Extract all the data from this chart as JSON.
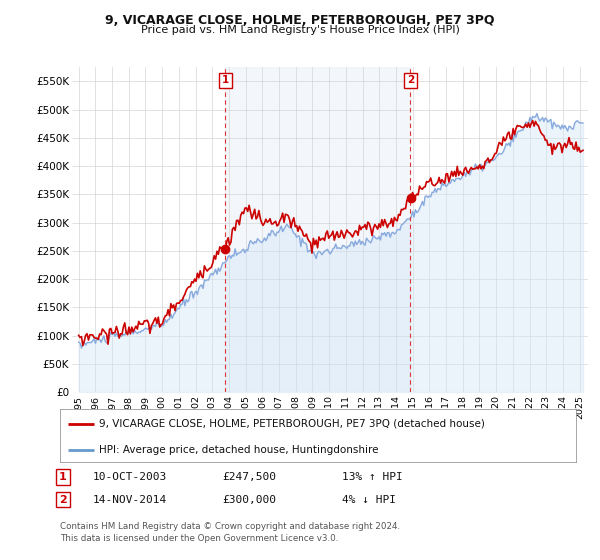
{
  "title": "9, VICARAGE CLOSE, HOLME, PETERBOROUGH, PE7 3PQ",
  "subtitle": "Price paid vs. HM Land Registry's House Price Index (HPI)",
  "ylim": [
    0,
    575000
  ],
  "yticks": [
    0,
    50000,
    100000,
    150000,
    200000,
    250000,
    300000,
    350000,
    400000,
    450000,
    500000,
    550000
  ],
  "ytick_labels": [
    "£0",
    "£50K",
    "£100K",
    "£150K",
    "£200K",
    "£250K",
    "£300K",
    "£350K",
    "£400K",
    "£450K",
    "£500K",
    "£550K"
  ],
  "bg_color": "#ffffff",
  "grid_color": "#cccccc",
  "sale1_date": 2003.78,
  "sale1_price": 247500,
  "sale2_date": 2014.87,
  "sale2_price": 300000,
  "legend_line1": "9, VICARAGE CLOSE, HOLME, PETERBOROUGH, PE7 3PQ (detached house)",
  "legend_line2": "HPI: Average price, detached house, Huntingdonshire",
  "legend_line1_color": "#cc0000",
  "legend_line2_color": "#6699cc",
  "annotation1": [
    "1",
    "10-OCT-2003",
    "£247,500",
    "13% ↑ HPI"
  ],
  "annotation2": [
    "2",
    "14-NOV-2014",
    "£300,000",
    "4% ↓ HPI"
  ],
  "footer": "Contains HM Land Registry data © Crown copyright and database right 2024.\nThis data is licensed under the Open Government Licence v3.0.",
  "hpi_color": "#88aadd",
  "hpi_fill": "#d0e4f7",
  "price_color": "#cc0000",
  "shade_color": "#e8f0f8"
}
